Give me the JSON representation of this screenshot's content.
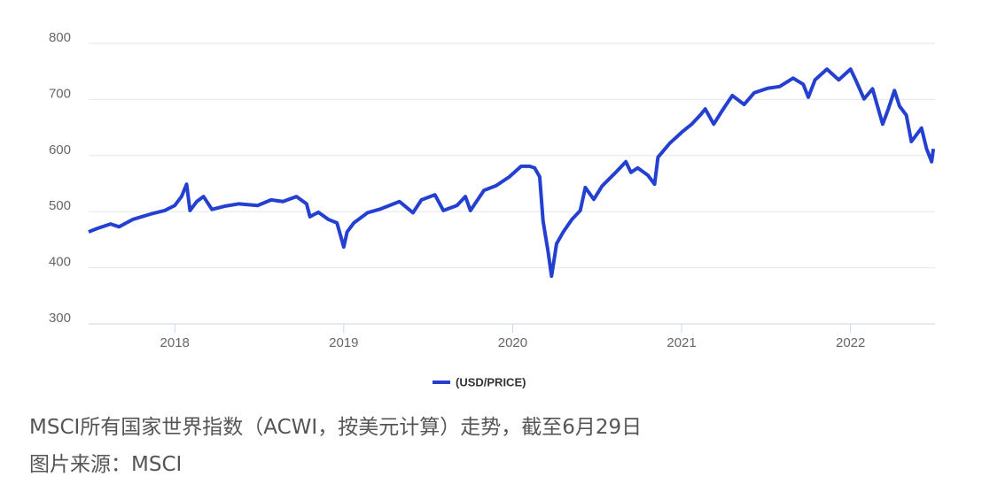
{
  "chart_data": {
    "type": "line",
    "x": [
      2017.49,
      2017.54,
      2017.62,
      2017.67,
      2017.75,
      2017.86,
      2017.94,
      2018.0,
      2018.04,
      2018.07,
      2018.09,
      2018.13,
      2018.17,
      2018.22,
      2018.3,
      2018.38,
      2018.49,
      2018.57,
      2018.64,
      2018.72,
      2018.78,
      2018.8,
      2018.85,
      2018.91,
      2018.96,
      2018.99,
      2019.0,
      2019.02,
      2019.06,
      2019.14,
      2019.22,
      2019.33,
      2019.41,
      2019.46,
      2019.54,
      2019.59,
      2019.67,
      2019.72,
      2019.75,
      2019.83,
      2019.9,
      2019.98,
      2020.05,
      2020.1,
      2020.13,
      2020.16,
      2020.18,
      2020.21,
      2020.23,
      2020.26,
      2020.3,
      2020.35,
      2020.4,
      2020.43,
      2020.48,
      2020.53,
      2020.61,
      2020.67,
      2020.7,
      2020.74,
      2020.8,
      2020.84,
      2020.86,
      2020.93,
      2021.01,
      2021.06,
      2021.11,
      2021.14,
      2021.19,
      2021.24,
      2021.3,
      2021.37,
      2021.43,
      2021.51,
      2021.58,
      2021.66,
      2021.72,
      2021.75,
      2021.79,
      2021.86,
      2021.93,
      2022.0,
      2022.03,
      2022.08,
      2022.13,
      2022.19,
      2022.22,
      2022.26,
      2022.29,
      2022.33,
      2022.36,
      2022.4,
      2022.42,
      2022.45,
      2022.48,
      2022.49
    ],
    "series": [
      {
        "name": "(USD/PRICE)",
        "color": "#2340d0",
        "values": [
          464,
          470,
          478,
          473,
          486,
          496,
          502,
          511,
          527,
          549,
          502,
          518,
          527,
          504,
          510,
          514,
          511,
          521,
          518,
          527,
          514,
          491,
          499,
          486,
          480,
          448,
          437,
          464,
          480,
          498,
          505,
          518,
          498,
          521,
          530,
          502,
          511,
          527,
          502,
          538,
          546,
          562,
          581,
          581,
          578,
          562,
          483,
          428,
          385,
          443,
          464,
          486,
          502,
          543,
          522,
          546,
          570,
          589,
          570,
          578,
          565,
          549,
          597,
          622,
          644,
          656,
          672,
          683,
          656,
          680,
          707,
          691,
          712,
          720,
          723,
          738,
          727,
          704,
          735,
          754,
          735,
          754,
          735,
          701,
          719,
          656,
          680,
          716,
          688,
          672,
          625,
          641,
          649,
          612,
          589,
          612
        ]
      }
    ],
    "xlim": [
      2017.49,
      2022.5
    ],
    "xticks": [
      2018,
      2019,
      2020,
      2021,
      2022
    ],
    "ylim": [
      300,
      800
    ],
    "yticks": [
      300,
      400,
      500,
      600,
      700,
      800
    ],
    "grid": true
  },
  "caption": [
    "MSCI所有国家世界指数（ACWI，按美元计算）走势，截至6月29日",
    "图片来源：MSCI"
  ]
}
